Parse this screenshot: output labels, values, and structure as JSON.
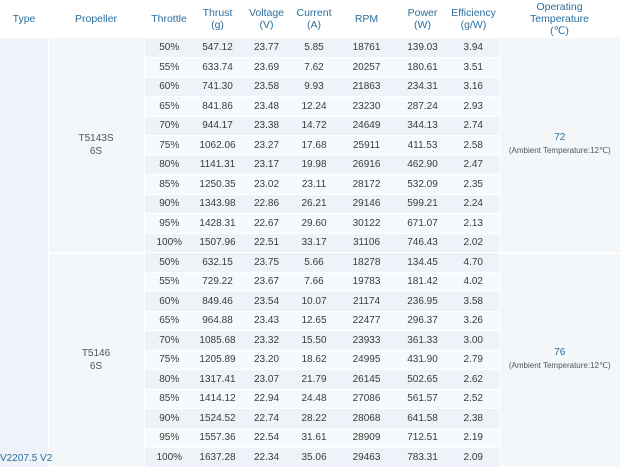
{
  "headers": {
    "type": "Type",
    "propeller": "Propeller",
    "throttle": "Throttle",
    "thrust": "Thrust",
    "thrust_unit": "(g)",
    "voltage": "Voltage",
    "voltage_unit": "(V)",
    "current": "Current",
    "current_unit": "(A)",
    "rpm": "RPM",
    "power": "Power",
    "power_unit": "(W)",
    "efficiency": "Efficiency",
    "efficiency_unit": "(g/W)",
    "temp_line1": "Operating",
    "temp_line2": "Temperature",
    "temp_unit": "(℃)"
  },
  "motor_type": "V2207.5 V2",
  "groups": [
    {
      "propeller_line1": "T5143S",
      "propeller_line2": "6S",
      "temperature": "72",
      "temperature_note": "(Ambient Temperature:12℃)",
      "rows": [
        [
          "50%",
          "547.12",
          "23.77",
          "5.85",
          "18761",
          "139.03",
          "3.94"
        ],
        [
          "55%",
          "633.74",
          "23.69",
          "7.62",
          "20257",
          "180.61",
          "3.51"
        ],
        [
          "60%",
          "741.30",
          "23.58",
          "9.93",
          "21863",
          "234.31",
          "3.16"
        ],
        [
          "65%",
          "841.86",
          "23.48",
          "12.24",
          "23230",
          "287.24",
          "2.93"
        ],
        [
          "70%",
          "944.17",
          "23.38",
          "14.72",
          "24649",
          "344.13",
          "2.74"
        ],
        [
          "75%",
          "1062.06",
          "23.27",
          "17.68",
          "25911",
          "411.53",
          "2.58"
        ],
        [
          "80%",
          "1141.31",
          "23.17",
          "19.98",
          "26916",
          "462.90",
          "2.47"
        ],
        [
          "85%",
          "1250.35",
          "23.02",
          "23.11",
          "28172",
          "532.09",
          "2.35"
        ],
        [
          "90%",
          "1343.98",
          "22.86",
          "26.21",
          "29146",
          "599.21",
          "2.24"
        ],
        [
          "95%",
          "1428.31",
          "22.67",
          "29.60",
          "30122",
          "671.07",
          "2.13"
        ],
        [
          "100%",
          "1507.96",
          "22.51",
          "33.17",
          "31106",
          "746.43",
          "2.02"
        ]
      ]
    },
    {
      "propeller_line1": "T5146",
      "propeller_line2": "6S",
      "temperature": "76",
      "temperature_note": "(Ambient Temperature:12℃)",
      "rows": [
        [
          "50%",
          "632.15",
          "23.75",
          "5.66",
          "18278",
          "134.45",
          "4.70"
        ],
        [
          "55%",
          "729.22",
          "23.67",
          "7.66",
          "19783",
          "181.42",
          "4.02"
        ],
        [
          "60%",
          "849.46",
          "23.54",
          "10.07",
          "21174",
          "236.95",
          "3.58"
        ],
        [
          "65%",
          "964.88",
          "23.43",
          "12.65",
          "22477",
          "296.37",
          "3.26"
        ],
        [
          "70%",
          "1085.68",
          "23.32",
          "15.50",
          "23933",
          "361.33",
          "3.00"
        ],
        [
          "75%",
          "1205.89",
          "23.20",
          "18.62",
          "24995",
          "431.90",
          "2.79"
        ],
        [
          "80%",
          "1317.41",
          "23.07",
          "21.79",
          "26145",
          "502.65",
          "2.62"
        ],
        [
          "85%",
          "1414.12",
          "22.94",
          "24.48",
          "27086",
          "561.57",
          "2.52"
        ],
        [
          "90%",
          "1524.52",
          "22.74",
          "28.22",
          "28068",
          "641.58",
          "2.38"
        ],
        [
          "95%",
          "1557.36",
          "22.54",
          "31.61",
          "28909",
          "712.51",
          "2.19"
        ],
        [
          "100%",
          "1637.28",
          "22.34",
          "35.06",
          "29463",
          "783.31",
          "2.09"
        ]
      ]
    }
  ]
}
